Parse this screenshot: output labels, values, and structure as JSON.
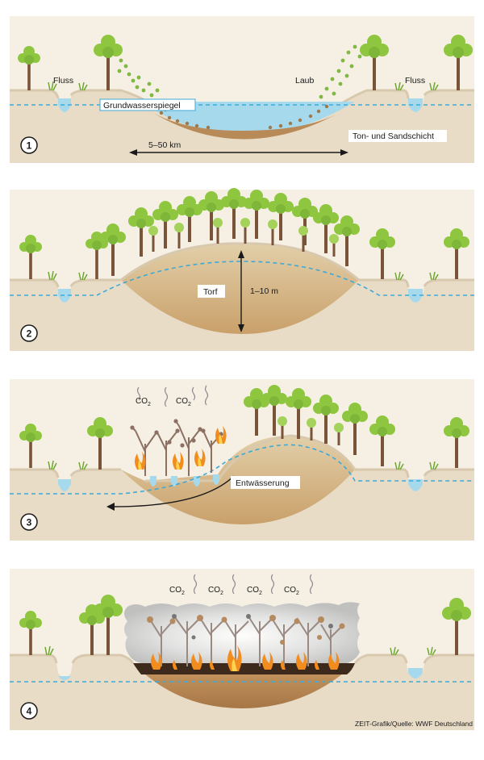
{
  "panels": [
    {
      "number": "1",
      "labels": {
        "fluss_left": "Fluss",
        "fluss_right": "Fluss",
        "laub": "Laub",
        "grundwasser": "Grundwasserspiegel",
        "schicht": "Ton- und Sandschicht",
        "width": "5–50 km"
      }
    },
    {
      "number": "2",
      "labels": {
        "torf": "Torf",
        "depth": "1–10 m"
      }
    },
    {
      "number": "3",
      "labels": {
        "entwaesserung": "Entwässerung",
        "co2_main": "CO",
        "co2_sub": "2"
      }
    },
    {
      "number": "4",
      "labels": {
        "co2_main": "CO",
        "co2_sub": "2"
      }
    }
  ],
  "credit": "ZEIT-Grafik/Quelle: WWF Deutschland",
  "colors": {
    "panel_bg": "#f5efe4",
    "ground": "#e9dcc6",
    "ground_line": "#d8c8ad",
    "topsoil": "#d9c29c",
    "peat": "#b48553",
    "peat_dark": "#8f6438",
    "water": "#a7d9ec",
    "water_line": "#3fa9d6",
    "tree_leaf": "#8fc63f",
    "tree_leaf_dark": "#6ea730",
    "trunk": "#7a5438",
    "dead_tree": "#8c7062",
    "fire": "#f28c1e",
    "smoke": "#c8c8c8"
  }
}
